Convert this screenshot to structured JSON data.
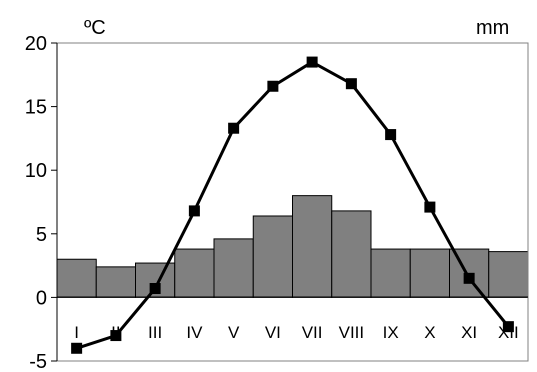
{
  "chart_data": {
    "type": "bar-line-combo",
    "left_unit_label": "ºC",
    "right_unit_label": "mm",
    "categories": [
      "I",
      "II",
      "III",
      "IV",
      "V",
      "VI",
      "VII",
      "VIII",
      "IX",
      "X",
      "XI",
      "XII"
    ],
    "y_ticks": [
      "20",
      "15",
      "10",
      "5",
      "0",
      "-5"
    ],
    "ylim": [
      -5,
      20
    ],
    "grid": false,
    "series": [
      {
        "kind": "bar",
        "values": [
          3.0,
          2.4,
          2.7,
          3.8,
          4.6,
          6.4,
          8.0,
          6.8,
          3.8,
          3.8,
          3.8,
          3.6
        ],
        "color": "#808080"
      },
      {
        "kind": "line",
        "values": [
          -4.0,
          -3.0,
          0.7,
          6.8,
          13.3,
          16.6,
          18.5,
          16.8,
          12.8,
          7.1,
          1.5,
          -2.3
        ],
        "color": "#000000"
      }
    ]
  }
}
